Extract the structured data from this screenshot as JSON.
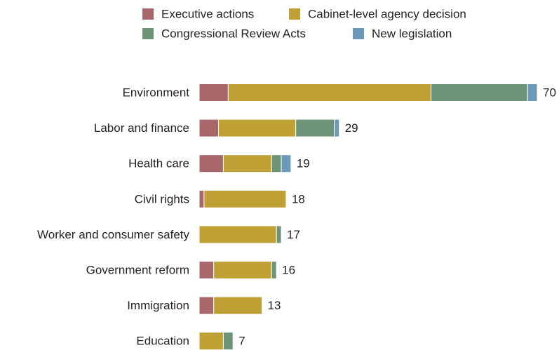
{
  "chart_data": {
    "type": "stacked-bar-horizontal",
    "categories": [
      "Environment",
      "Labor and finance",
      "Health care",
      "Civil rights",
      "Worker and consumer safety",
      "Government reform",
      "Immigration",
      "Education"
    ],
    "series": [
      {
        "name": "Executive actions",
        "color": "#a8676a",
        "values": [
          6,
          4,
          5,
          1,
          0,
          3,
          3,
          0
        ]
      },
      {
        "name": "Cabinet-level agency decision",
        "color": "#bfa035",
        "values": [
          42,
          16,
          10,
          17,
          16,
          12,
          10,
          5
        ]
      },
      {
        "name": "Congressional Review Acts",
        "color": "#6e9478",
        "values": [
          20,
          8,
          2,
          0,
          1,
          1,
          0,
          2
        ]
      },
      {
        "name": "New legislation",
        "color": "#6a9ab8",
        "values": [
          2,
          1,
          2,
          0,
          0,
          0,
          0,
          0
        ]
      }
    ],
    "totals": [
      70,
      29,
      19,
      18,
      17,
      16,
      13,
      7
    ]
  }
}
